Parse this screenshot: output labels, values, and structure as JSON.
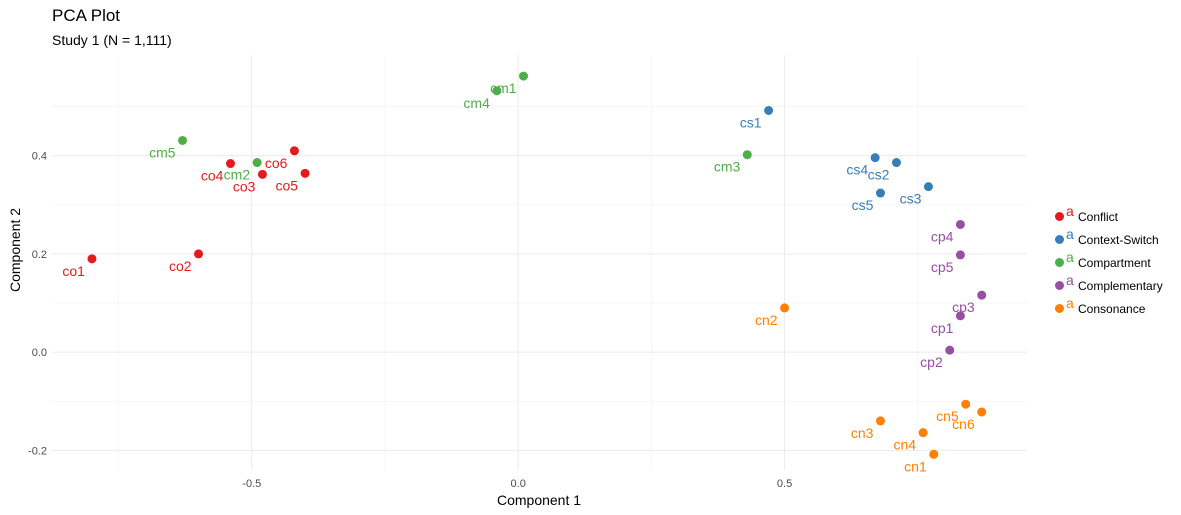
{
  "title": "PCA Plot",
  "subtitle": "Study 1 (N = 1,111)",
  "chart_data": {
    "type": "scatter",
    "title": "PCA Plot",
    "subtitle": "Study 1 (N = 1,111)",
    "xlabel": "Component 1",
    "ylabel": "Component 2",
    "xlim": [
      -0.875,
      0.955
    ],
    "ylim": [
      -0.24,
      0.605
    ],
    "xticks": [
      -0.5,
      0.0,
      0.5
    ],
    "xtick_labels": [
      "-0.5",
      "0.0",
      "0.5"
    ],
    "yticks": [
      -0.2,
      0.0,
      0.2,
      0.4
    ],
    "ytick_labels": [
      "-0.2",
      "0.0",
      "0.2",
      "0.4"
    ],
    "grid": true,
    "legend_position": "right",
    "legend_key_glyph": "a",
    "series": [
      {
        "name": "Conflict",
        "color": "#E41A1C",
        "points": [
          {
            "label": "co1",
            "x": -0.8,
            "y": 0.19
          },
          {
            "label": "co2",
            "x": -0.6,
            "y": 0.2
          },
          {
            "label": "co3",
            "x": -0.48,
            "y": 0.362
          },
          {
            "label": "co4",
            "x": -0.54,
            "y": 0.384
          },
          {
            "label": "co5",
            "x": -0.4,
            "y": 0.364
          },
          {
            "label": "co6",
            "x": -0.42,
            "y": 0.41
          }
        ]
      },
      {
        "name": "Context-Switch",
        "color": "#377EB8",
        "points": [
          {
            "label": "cs1",
            "x": 0.47,
            "y": 0.492
          },
          {
            "label": "cs2",
            "x": 0.71,
            "y": 0.386
          },
          {
            "label": "cs3",
            "x": 0.77,
            "y": 0.337
          },
          {
            "label": "cs4",
            "x": 0.67,
            "y": 0.396
          },
          {
            "label": "cs5",
            "x": 0.68,
            "y": 0.324
          }
        ]
      },
      {
        "name": "Compartment",
        "color": "#4DAF4A",
        "points": [
          {
            "label": "cm1",
            "x": 0.01,
            "y": 0.562
          },
          {
            "label": "cm2",
            "x": -0.49,
            "y": 0.386
          },
          {
            "label": "cm3",
            "x": 0.43,
            "y": 0.402
          },
          {
            "label": "cm4",
            "x": -0.04,
            "y": 0.532
          },
          {
            "label": "cm5",
            "x": -0.63,
            "y": 0.431
          }
        ]
      },
      {
        "name": "Complementary",
        "color": "#984EA3",
        "points": [
          {
            "label": "cp1",
            "x": 0.83,
            "y": 0.074
          },
          {
            "label": "cp2",
            "x": 0.81,
            "y": 0.004
          },
          {
            "label": "cp3",
            "x": 0.87,
            "y": 0.116
          },
          {
            "label": "cp4",
            "x": 0.83,
            "y": 0.26
          },
          {
            "label": "cp5",
            "x": 0.83,
            "y": 0.198
          }
        ]
      },
      {
        "name": "Consonance",
        "color": "#FF7F00",
        "points": [
          {
            "label": "cn1",
            "x": 0.78,
            "y": -0.208
          },
          {
            "label": "cn2",
            "x": 0.5,
            "y": 0.09
          },
          {
            "label": "cn3",
            "x": 0.68,
            "y": -0.14
          },
          {
            "label": "cn4",
            "x": 0.76,
            "y": -0.164
          },
          {
            "label": "cn5",
            "x": 0.84,
            "y": -0.106
          },
          {
            "label": "cn6",
            "x": 0.87,
            "y": -0.122
          }
        ]
      }
    ]
  }
}
